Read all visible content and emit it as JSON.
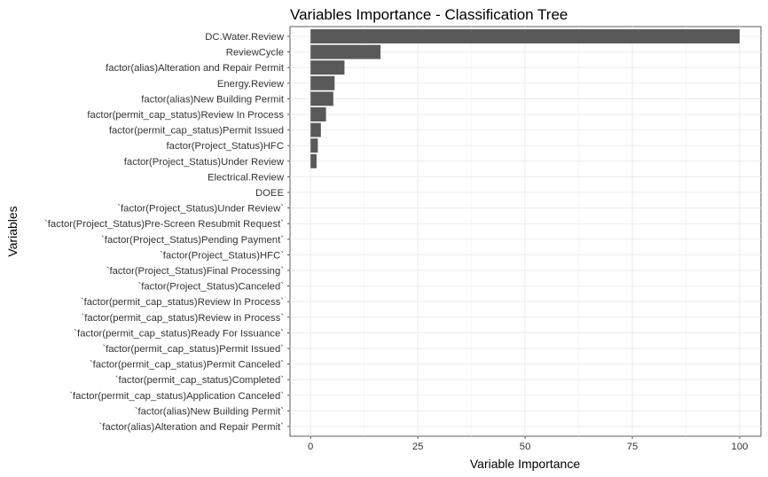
{
  "chart_data": {
    "type": "bar",
    "orientation": "horizontal",
    "title": "Variables Importance - Classification Tree",
    "xlabel": "Variable Importance",
    "ylabel": "Variables",
    "xlim": [
      0,
      100
    ],
    "xticks": [
      0,
      25,
      50,
      75,
      100
    ],
    "grid": true,
    "bar_color": "#595959",
    "categories": [
      "DC.Water.Review",
      "ReviewCycle",
      "factor(alias)Alteration and Repair Permit",
      "Energy.Review",
      "factor(alias)New Building Permit",
      "factor(permit_cap_status)Review In Process",
      "factor(permit_cap_status)Permit Issued",
      "factor(Project_Status)HFC",
      "factor(Project_Status)Under Review",
      "Electrical.Review",
      "DOEE",
      "`factor(Project_Status)Under Review`",
      "`factor(Project_Status)Pre-Screen Resubmit Request`",
      "`factor(Project_Status)Pending Payment`",
      "`factor(Project_Status)HFC`",
      "`factor(Project_Status)Final Processing`",
      "`factor(Project_Status)Canceled`",
      "`factor(permit_cap_status)Review In Process`",
      "`factor(permit_cap_status)Review in Process`",
      "`factor(permit_cap_status)Ready For Issuance`",
      "`factor(permit_cap_status)Permit Issued`",
      "`factor(permit_cap_status)Permit Canceled`",
      "`factor(permit_cap_status)Completed`",
      "`factor(permit_cap_status)Application Canceled`",
      "`factor(alias)New Building Permit`",
      "`factor(alias)Alteration and Repair Permit`"
    ],
    "values": [
      100,
      16.3,
      7.9,
      5.6,
      5.3,
      3.6,
      2.4,
      1.7,
      1.4,
      0,
      0,
      0,
      0,
      0,
      0,
      0,
      0,
      0,
      0,
      0,
      0,
      0,
      0,
      0,
      0,
      0
    ]
  }
}
